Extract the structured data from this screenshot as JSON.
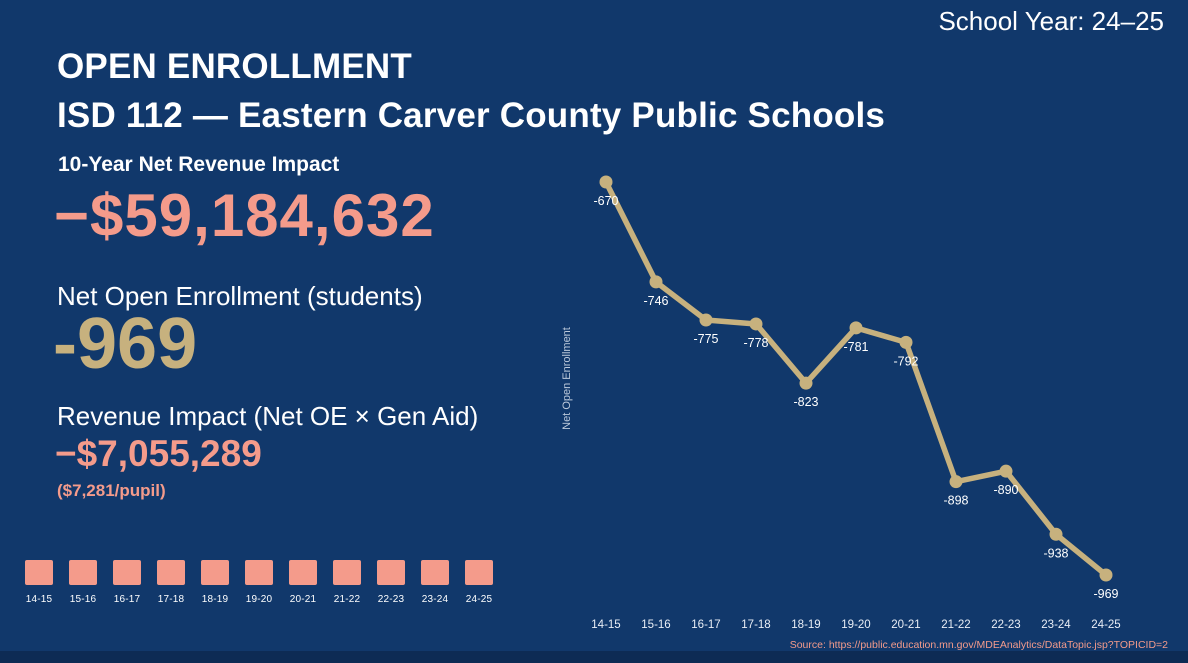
{
  "colors": {
    "background": "#11386b",
    "salmon": "#f49b8b",
    "tan": "#c7b17e",
    "white": "#ffffff",
    "axis_text": "#bcc9db"
  },
  "header": {
    "school_year": "School Year: 24–25",
    "title_line1": "OPEN ENROLLMENT",
    "title_line2": "ISD 112 — Eastern Carver County Public Schools"
  },
  "stats": {
    "revenue_label": "10-Year Net Revenue Impact",
    "revenue_value": "−$59,184,632",
    "enrollment_label": "Net Open Enrollment (students)",
    "enrollment_value": "-969",
    "impact_label": "Revenue Impact (Net OE × Gen Aid)",
    "impact_value": "−$7,055,289",
    "per_pupil": "($7,281/pupil)"
  },
  "year_squares": {
    "years": [
      "14-15",
      "15-16",
      "16-17",
      "17-18",
      "18-19",
      "19-20",
      "20-21",
      "21-22",
      "22-23",
      "23-24",
      "24-25"
    ]
  },
  "chart_data": {
    "type": "line",
    "categories": [
      "14-15",
      "15-16",
      "16-17",
      "17-18",
      "18-19",
      "19-20",
      "20-21",
      "21-22",
      "22-23",
      "23-24",
      "24-25"
    ],
    "values": [
      -670,
      -746,
      -775,
      -778,
      -823,
      -781,
      -792,
      -898,
      -890,
      -938,
      -969
    ],
    "title": "",
    "xlabel": "",
    "ylabel": "Net Open Enrollment",
    "ylim": [
      -1000,
      -650
    ],
    "grid": false,
    "legend_position": "none",
    "line_color": "#c7b17e",
    "label_color": "#ffffff"
  },
  "source": "Source: https://public.education.mn.gov/MDEAnalytics/DataTopic.jsp?TOPICID=2"
}
